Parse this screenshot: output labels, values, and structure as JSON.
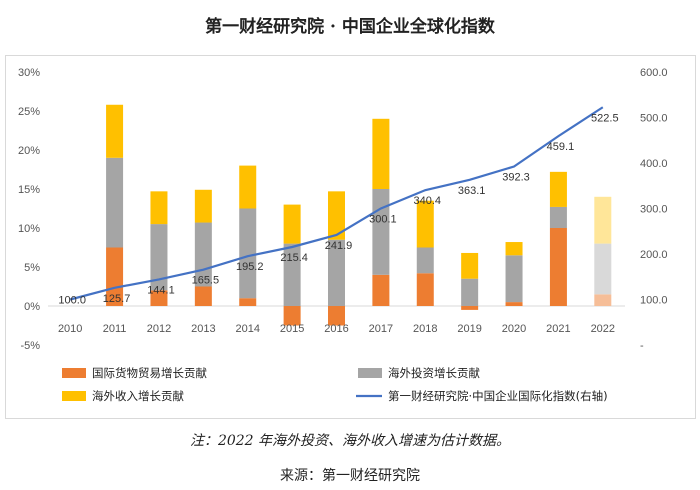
{
  "title": "第一财经研究院 · 中国企业全球化指数",
  "note": "注：2022 年海外投资、海外收入增速为估计数据。",
  "source": "来源：第一财经研究院",
  "chart_data": {
    "type": "bar",
    "stacked": true,
    "categories": [
      "2010",
      "2011",
      "2012",
      "2013",
      "2014",
      "2015",
      "2016",
      "2017",
      "2018",
      "2019",
      "2020",
      "2021",
      "2022"
    ],
    "left_axis": {
      "ticks": [
        "30%",
        "25%",
        "20%",
        "15%",
        "10%",
        "5%",
        "0%",
        "-5%"
      ],
      "ylim": [
        -5,
        30
      ]
    },
    "right_axis": {
      "ticks": [
        "600.0",
        "500.0",
        "400.0",
        "300.0",
        "200.0",
        "100.0",
        "-"
      ],
      "ylim": [
        0,
        600
      ]
    },
    "series": [
      {
        "name": "国际货物贸易增长贡献",
        "type": "bar",
        "color": "#ed7d31",
        "values": [
          null,
          7.5,
          2.0,
          2.5,
          1.0,
          -2.5,
          -2.5,
          4.0,
          4.2,
          -0.5,
          0.5,
          10.0,
          1.5
        ]
      },
      {
        "name": "海外投资增长贡献",
        "type": "bar",
        "color": "#a5a5a5",
        "values": [
          null,
          11.5,
          8.5,
          8.2,
          11.5,
          8.0,
          8.5,
          11.0,
          3.3,
          3.5,
          6.0,
          2.7,
          6.5
        ]
      },
      {
        "name": "海外收入增长贡献",
        "type": "bar",
        "color": "#ffc000",
        "values": [
          null,
          6.8,
          4.2,
          4.2,
          5.5,
          5.0,
          6.2,
          9.0,
          6.0,
          3.3,
          1.7,
          4.5,
          6.0
        ]
      },
      {
        "name": "第一财经研究院·中国企业国际化指数(右轴)",
        "type": "line",
        "color": "#4472c4",
        "axis": "right",
        "values": [
          100.0,
          125.7,
          144.1,
          165.5,
          195.2,
          215.4,
          241.9,
          300.1,
          340.4,
          363.1,
          392.3,
          459.1,
          522.5
        ],
        "labels": [
          "100.0",
          "125.7",
          "144.1",
          "165.5",
          "195.2",
          "215.4",
          "241.9",
          "300.1",
          "340.4",
          "363.1",
          "392.3",
          "459.1",
          "522.5"
        ]
      }
    ],
    "estimated_category": "2022",
    "estimated_colors": [
      "#f6be98",
      "#d9d9d9",
      "#ffe699"
    ],
    "legend": "bottom"
  }
}
